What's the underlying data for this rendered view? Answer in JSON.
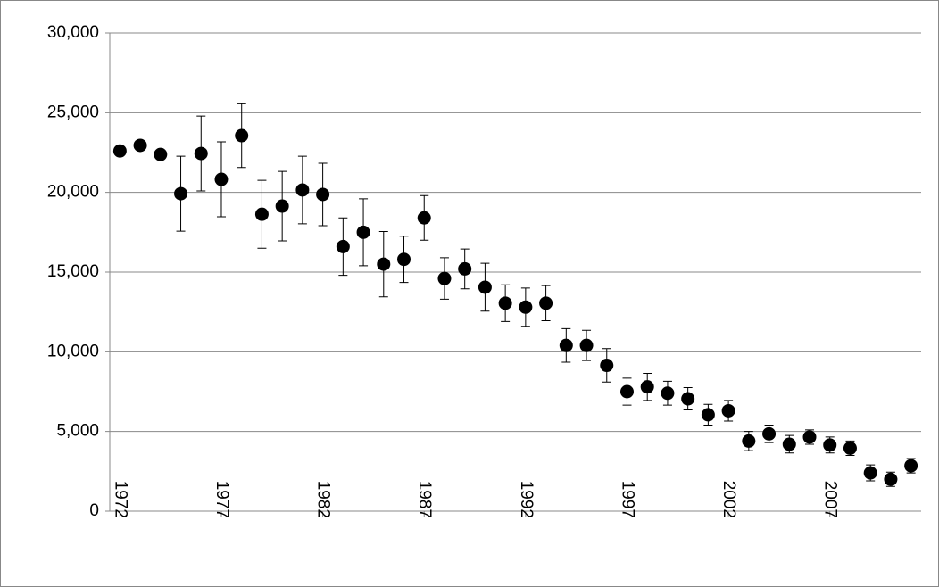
{
  "chart_data": {
    "type": "scatter",
    "x": [
      1972,
      1973,
      1974,
      1975,
      1976,
      1977,
      1978,
      1979,
      1980,
      1981,
      1982,
      1983,
      1984,
      1985,
      1986,
      1987,
      1988,
      1989,
      1990,
      1991,
      1992,
      1993,
      1994,
      1995,
      1996,
      1997,
      1998,
      1999,
      2000,
      2001,
      2002,
      2003,
      2004,
      2005,
      2006,
      2007,
      2008,
      2009,
      2010,
      2011
    ],
    "series": [
      {
        "color": "#000000",
        "values": [
          22600,
          22950,
          22380,
          19920,
          22440,
          20820,
          23560,
          18630,
          19140,
          20150,
          19870,
          16600,
          17500,
          15500,
          15800,
          18400,
          14600,
          15200,
          14050,
          13050,
          12800,
          13050,
          10400,
          10400,
          9150,
          7500,
          7800,
          7400,
          7050,
          6050,
          6300,
          4400,
          4850,
          4200,
          4650,
          4150,
          3950,
          2400,
          2000,
          2850
        ],
        "errors": [
          null,
          null,
          null,
          2350,
          2350,
          2350,
          2000,
          2130,
          2180,
          2120,
          1960,
          1800,
          2100,
          2050,
          1450,
          1400,
          1300,
          1250,
          1500,
          1150,
          1200,
          1100,
          1050,
          950,
          1050,
          850,
          850,
          750,
          700,
          650,
          650,
          600,
          550,
          550,
          450,
          500,
          450,
          500,
          450,
          450
        ]
      }
    ],
    "xlim": [
      1971.5,
      2011.5
    ],
    "xticks": [
      1972,
      1977,
      1982,
      1987,
      1992,
      1997,
      2002,
      2007
    ],
    "ylim": [
      0,
      30000
    ],
    "yticks": [
      0,
      {
        "value": 5000,
        "label": "5,000"
      },
      {
        "value": 10000,
        "label": "10,000"
      },
      {
        "value": 15000,
        "label": "15,000"
      },
      {
        "value": 20000,
        "label": "20,000"
      },
      {
        "value": 25000,
        "label": "25,000"
      },
      {
        "value": 30000,
        "label": "30,000"
      }
    ],
    "grid": true
  }
}
